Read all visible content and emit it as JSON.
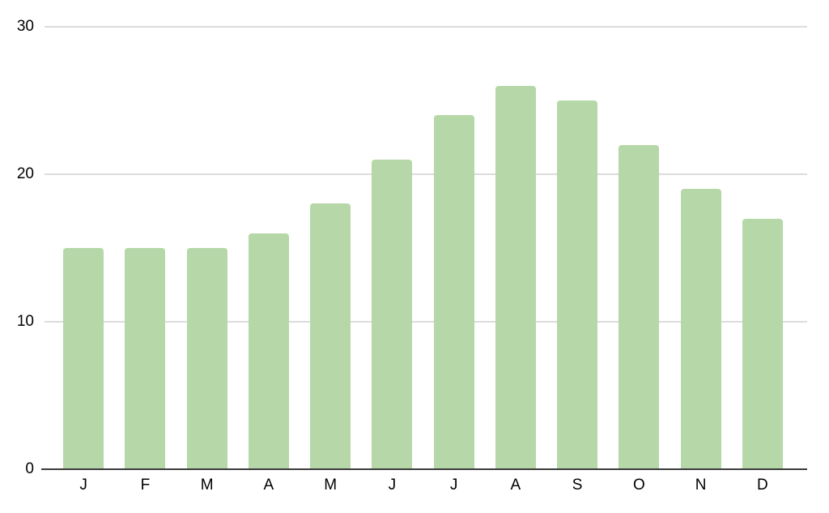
{
  "chart_data": {
    "type": "bar",
    "title": "",
    "xlabel": "",
    "ylabel": "",
    "categories": [
      "J",
      "F",
      "M",
      "A",
      "M",
      "J",
      "J",
      "A",
      "S",
      "O",
      "N",
      "D"
    ],
    "values": [
      15,
      15,
      15,
      16,
      18,
      21,
      24,
      26,
      25,
      22,
      19,
      17
    ],
    "ylim": [
      0,
      30
    ],
    "yticks": [
      30,
      20,
      10,
      0
    ],
    "grid": true,
    "legend_position": "none",
    "colors": {
      "bar": "#b6d7a8",
      "gridline": "#dcdcdc",
      "axis": "#3c3c3c",
      "label": "#000000",
      "background": "#ffffff"
    }
  }
}
